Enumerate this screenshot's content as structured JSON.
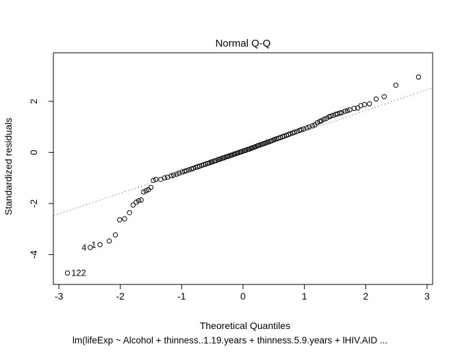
{
  "chart_data": {
    "type": "scatter",
    "title": "Normal Q-Q",
    "xlabel": "Theoretical Quantiles",
    "ylabel": "Standardized residuals",
    "subtitle": "lm(lifeExp ~ Alcohol + thinness..1.19.years + thinness.5.9.years + lHIV.AID ...",
    "x_ticks": [
      -3,
      -2,
      -1,
      0,
      1,
      2,
      3
    ],
    "y_ticks": [
      -4,
      -2,
      0,
      2
    ],
    "xlim": [
      -3.09,
      3.09
    ],
    "ylim": [
      -5.17,
      3.9
    ],
    "grid": false,
    "marker": {
      "shape": "open-circle",
      "color": "#000000",
      "radius": 3.2
    },
    "reference_line": {
      "slope": 0.81,
      "intercept": 0.02,
      "style": "dotted",
      "color": "#999999"
    },
    "labeled_points": [
      {
        "label": "122",
        "x": -2.86,
        "y": -4.72,
        "side": "right"
      },
      {
        "label": "4",
        "x": -2.49,
        "y": -3.72,
        "side": "left"
      },
      {
        "label": "1",
        "x": -2.33,
        "y": -3.61,
        "side": "left"
      }
    ],
    "points": [
      [
        -2.86,
        -4.72
      ],
      [
        -2.49,
        -3.72
      ],
      [
        -2.33,
        -3.61
      ],
      [
        -2.18,
        -3.47
      ],
      [
        -2.08,
        -3.23
      ],
      [
        -2.01,
        -2.64
      ],
      [
        -1.93,
        -2.6
      ],
      [
        -1.85,
        -2.36
      ],
      [
        -1.79,
        -2.06
      ],
      [
        -1.74,
        -1.95
      ],
      [
        -1.7,
        -1.89
      ],
      [
        -1.66,
        -1.86
      ],
      [
        -1.62,
        -1.55
      ],
      [
        -1.58,
        -1.5
      ],
      [
        -1.54,
        -1.46
      ],
      [
        -1.5,
        -1.37
      ],
      [
        -1.46,
        -1.1
      ],
      [
        -1.42,
        -1.06
      ],
      [
        -1.34,
        -1.06
      ],
      [
        -1.28,
        -1.0
      ],
      [
        -1.23,
        -0.97
      ],
      [
        -1.17,
        -0.92
      ],
      [
        -1.13,
        -0.89
      ],
      [
        -1.08,
        -0.85
      ],
      [
        -1.04,
        -0.81
      ],
      [
        -0.99,
        -0.77
      ],
      [
        -0.95,
        -0.74
      ],
      [
        -0.92,
        -0.71
      ],
      [
        -0.88,
        -0.68
      ],
      [
        -0.84,
        -0.65
      ],
      [
        -0.81,
        -0.62
      ],
      [
        -0.77,
        -0.59
      ],
      [
        -0.74,
        -0.56
      ],
      [
        -0.71,
        -0.54
      ],
      [
        -0.67,
        -0.51
      ],
      [
        -0.64,
        -0.48
      ],
      [
        -0.61,
        -0.46
      ],
      [
        -0.58,
        -0.43
      ],
      [
        -0.55,
        -0.41
      ],
      [
        -0.52,
        -0.38
      ],
      [
        -0.5,
        -0.37
      ],
      [
        -0.47,
        -0.34
      ],
      [
        -0.44,
        -0.32
      ],
      [
        -0.41,
        -0.29
      ],
      [
        -0.39,
        -0.27
      ],
      [
        -0.36,
        -0.25
      ],
      [
        -0.33,
        -0.22
      ],
      [
        -0.31,
        -0.21
      ],
      [
        -0.28,
        -0.18
      ],
      [
        -0.25,
        -0.16
      ],
      [
        -0.23,
        -0.14
      ],
      [
        -0.2,
        -0.12
      ],
      [
        -0.18,
        -0.1
      ],
      [
        -0.15,
        -0.07
      ],
      [
        -0.13,
        -0.06
      ],
      [
        -0.1,
        -0.03
      ],
      [
        -0.08,
        -0.02
      ],
      [
        -0.05,
        0.01
      ],
      [
        -0.03,
        0.02
      ],
      [
        0.0,
        0.05
      ],
      [
        0.03,
        0.07
      ],
      [
        0.05,
        0.09
      ],
      [
        0.08,
        0.12
      ],
      [
        0.1,
        0.13
      ],
      [
        0.13,
        0.16
      ],
      [
        0.15,
        0.18
      ],
      [
        0.18,
        0.2
      ],
      [
        0.2,
        0.22
      ],
      [
        0.23,
        0.25
      ],
      [
        0.25,
        0.27
      ],
      [
        0.28,
        0.29
      ],
      [
        0.31,
        0.32
      ],
      [
        0.33,
        0.34
      ],
      [
        0.36,
        0.36
      ],
      [
        0.39,
        0.39
      ],
      [
        0.41,
        0.41
      ],
      [
        0.44,
        0.43
      ],
      [
        0.47,
        0.46
      ],
      [
        0.5,
        0.49
      ],
      [
        0.52,
        0.51
      ],
      [
        0.55,
        0.53
      ],
      [
        0.58,
        0.56
      ],
      [
        0.61,
        0.58
      ],
      [
        0.64,
        0.61
      ],
      [
        0.67,
        0.64
      ],
      [
        0.71,
        0.67
      ],
      [
        0.74,
        0.7
      ],
      [
        0.77,
        0.73
      ],
      [
        0.81,
        0.76
      ],
      [
        0.84,
        0.79
      ],
      [
        0.88,
        0.82
      ],
      [
        0.92,
        0.86
      ],
      [
        0.95,
        0.89
      ],
      [
        0.99,
        0.92
      ],
      [
        1.04,
        0.96
      ],
      [
        1.08,
        1.0
      ],
      [
        1.13,
        1.04
      ],
      [
        1.17,
        1.08
      ],
      [
        1.21,
        1.16
      ],
      [
        1.25,
        1.21
      ],
      [
        1.28,
        1.24
      ],
      [
        1.32,
        1.3
      ],
      [
        1.36,
        1.33
      ],
      [
        1.4,
        1.39
      ],
      [
        1.43,
        1.42
      ],
      [
        1.47,
        1.45
      ],
      [
        1.51,
        1.49
      ],
      [
        1.54,
        1.51
      ],
      [
        1.58,
        1.54
      ],
      [
        1.61,
        1.56
      ],
      [
        1.66,
        1.61
      ],
      [
        1.7,
        1.63
      ],
      [
        1.74,
        1.67
      ],
      [
        1.81,
        1.72
      ],
      [
        1.87,
        1.74
      ],
      [
        1.92,
        1.83
      ],
      [
        1.98,
        1.87
      ],
      [
        2.06,
        1.9
      ],
      [
        2.17,
        2.09
      ],
      [
        2.3,
        2.18
      ],
      [
        2.49,
        2.63
      ],
      [
        2.86,
        2.95
      ]
    ]
  },
  "style": {
    "marker_color": "#000000",
    "ref_line_color": "#999999",
    "background": "#ffffff"
  }
}
